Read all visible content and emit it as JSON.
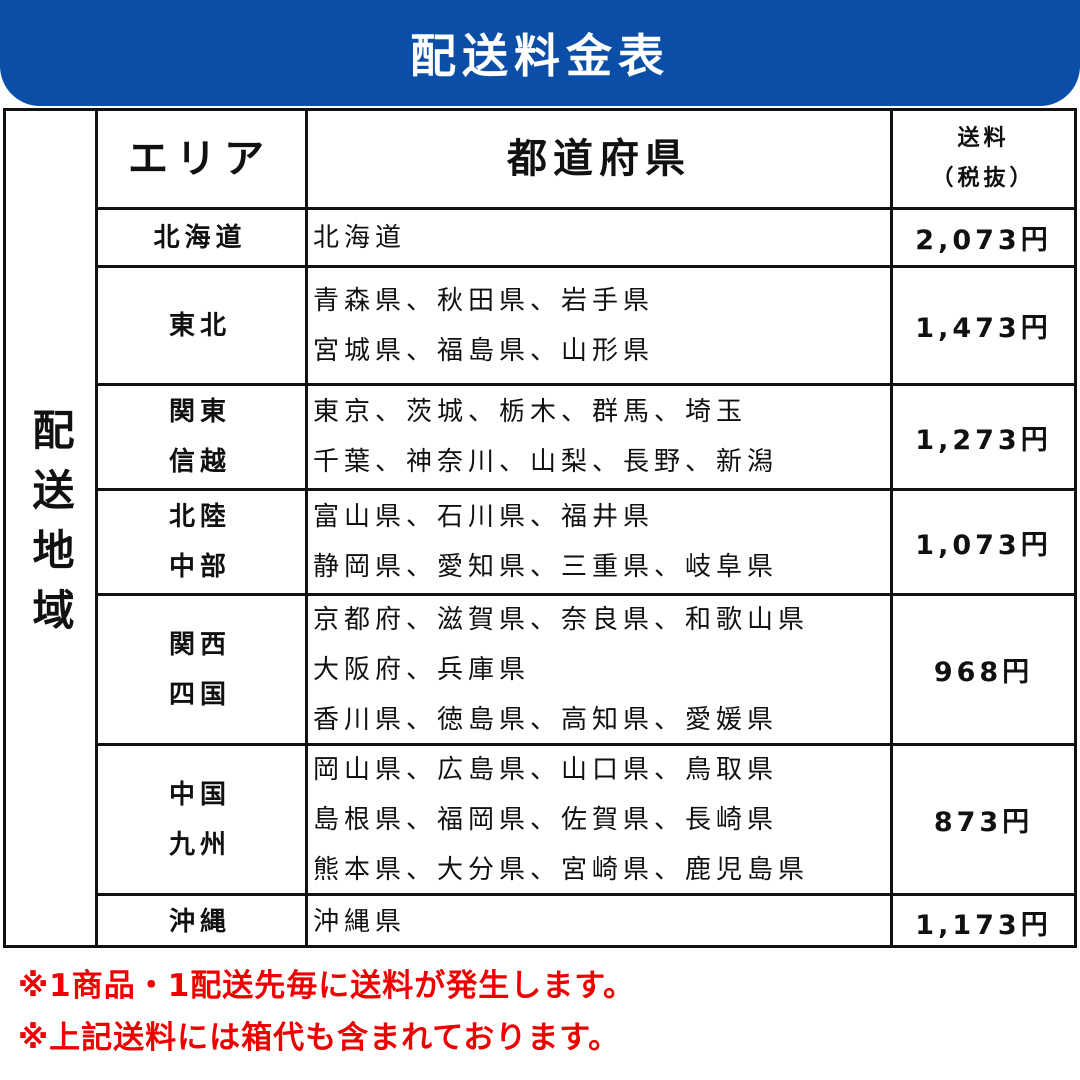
{
  "title": "配送料金表",
  "side_label": "配送地域",
  "header": {
    "area": "エリア",
    "prefectures": "都道府県",
    "fee_line1": "送料",
    "fee_line2": "（税抜）"
  },
  "rows": [
    {
      "area": [
        "北海道"
      ],
      "prefectures": [
        "北海道"
      ],
      "fee": "2,073円"
    },
    {
      "area": [
        "東北"
      ],
      "prefectures": [
        "青森県、秋田県、岩手県",
        "宮城県、福島県、山形県"
      ],
      "fee": "1,473円"
    },
    {
      "area": [
        "関東",
        "信越"
      ],
      "prefectures": [
        "東京、茨城、栃木、群馬、埼玉",
        "千葉、神奈川、山梨、長野、新潟"
      ],
      "fee": "1,273円"
    },
    {
      "area": [
        "北陸",
        "中部"
      ],
      "prefectures": [
        "富山県、石川県、福井県",
        "静岡県、愛知県、三重県、岐阜県"
      ],
      "fee": "1,073円"
    },
    {
      "area": [
        "関西",
        "四国"
      ],
      "prefectures": [
        "京都府、滋賀県、奈良県、和歌山県",
        "大阪府、兵庫県",
        "香川県、徳島県、高知県、愛媛県"
      ],
      "fee": "968円"
    },
    {
      "area": [
        "中国",
        "九州"
      ],
      "prefectures": [
        "岡山県、広島県、山口県、鳥取県",
        "島根県、福岡県、佐賀県、長崎県",
        "熊本県、大分県、宮崎県、鹿児島県"
      ],
      "fee": "873円"
    },
    {
      "area": [
        "沖縄"
      ],
      "prefectures": [
        "沖縄県"
      ],
      "fee": "1,173円"
    }
  ],
  "notes": [
    "※1商品・1配送先毎に送料が発生します。",
    "※上記送料には箱代も含まれております。"
  ],
  "colors": {
    "banner": "#0b4ea8",
    "note_text": "#e00000"
  }
}
